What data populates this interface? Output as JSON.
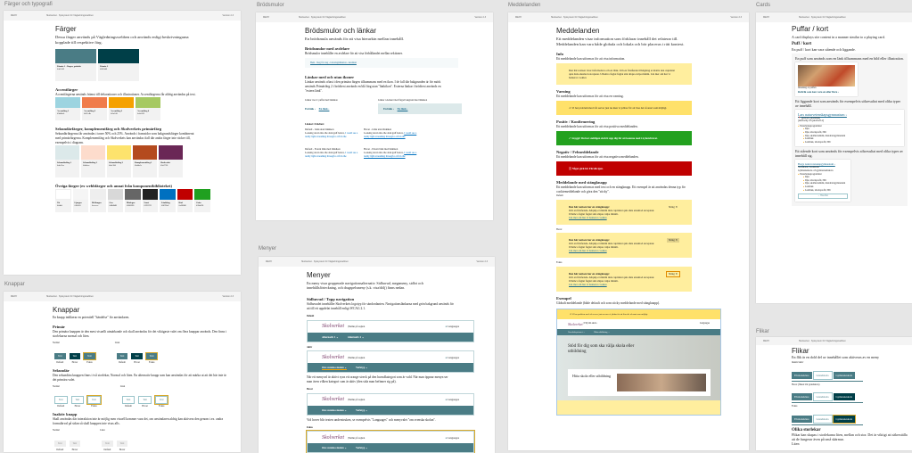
{
  "common": {
    "menu": "MENY",
    "breadcrumb": "Skolverket · Syksystem för Vägledningswebben",
    "version": "Version 2.3"
  },
  "colors": {
    "title": "Färger och typografi",
    "h1": "Färger",
    "lead": "Dessa färger används på Vägledningswebben och används enligt beskrivningarna kopplade till respektive färg.",
    "primary": [
      {
        "name": "Primär 1 - Rågrå, grönblå",
        "hex": "#4a7c85"
      },
      {
        "name": "Primär 2",
        "hex": "#003f48"
      }
    ],
    "accent_h": "Accentfärger",
    "accent_p": "Accentfärgerna används främst till dekorationer och illustrationer. Accentfärgerna får aldrig användas på text.",
    "accent": [
      {
        "name": "Accentfärg 1",
        "hex": "#9dd4e0"
      },
      {
        "name": "Accentfärg 2",
        "hex": "#f07c4b"
      },
      {
        "name": "Accentfärg 3",
        "hex": "#f5a100"
      },
      {
        "name": "Accentfärg 4",
        "hex": "#a6c962"
      }
    ],
    "secondary_h": "Sekundärfärger, komplementfärg och Skolverkets primärfärg",
    "secondary_p": "Sekundärfärgerna får användas i toner 50% och 25%. Används i framsidor som bakgrundsfärger kombinerat med primärfärgerna. Komplementfärg och Skolverkets kan användas ifall där andra färger inte räcker till, exempelvis i diagram.",
    "secondary": [
      {
        "name": "Sekundärfärg 1",
        "hex": "#dce9ea"
      },
      {
        "name": "Sekundärfärg 2",
        "hex": "#fddccc"
      },
      {
        "name": "Sekundärfärg 3",
        "hex": "#fde36d"
      },
      {
        "name": "Komplementfärg 1",
        "hex": "#b44a1e"
      },
      {
        "name": "Skolverket",
        "hex": "#6a2756"
      }
    ],
    "other_h": "Övriga färger (ex webbfärger och annat från komponentbiblioteket)",
    "other": [
      {
        "name": "Vit",
        "hex": "#ffffff"
      },
      {
        "name": "Ljusgrå",
        "hex": "#f5f5f5"
      },
      {
        "name": "Mellangrå",
        "hex": "#eeeeee"
      },
      {
        "name": "Grå",
        "hex": "#d8d8d8"
      },
      {
        "name": "Mörkgrå",
        "hex": "#666666"
      },
      {
        "name": "Svart",
        "hex": "#222222"
      },
      {
        "name": "Länkfärg",
        "hex": "#0070c0"
      },
      {
        "name": "Röd",
        "hex": "#c00000"
      },
      {
        "name": "Grön",
        "hex": "#20a020"
      }
    ]
  },
  "crumbs": {
    "title": "Brödsmulor",
    "h1": "Brödsmulor och länkar",
    "lead": "En brödsmula används för att visa hierarkin mellan innehåll.",
    "h2a": "Brödsmulor med avdelare",
    "pa": "Brödsmulor innehåller en avdelare för att visa förhållandet mellan sektioner.",
    "crumb": "Hem › Steg för steg › Lärarlegitimation › Ansökan",
    "h2b": "Länkar med och utan ikoner",
    "pb": "Länkar används oftast i den primära färgen tillsammans med en ikon. I de fall där bakgrunden är för mörk används Primärfärg 2 i brödtext används en blå färg utan \"länkikon\". Externa länkar i brödtext används en \"extern länk\".",
    "cards_label": "Länkar i kort / puffar med länkikon",
    "bg_label": "Länkar i element med färgad bakgrund med länkikon",
    "link": "En länk ›",
    "body_label": "Länkar i brödtext",
    "d1": "Default - Länk utan länkikon",
    "d2": "Hover - Länk utan länkikon",
    "d3": "Default - Extern länk med länkikon",
    "d4": "Hover - Extern länk med länkikon",
    "sample": "Looking down into the dark gulf below,",
    "sample_link": "I could see a ruddy light streaming through a rift in the"
  },
  "messages": {
    "title": "Meddelanden",
    "h1": "Meddelanden",
    "lead": "Ett meddelanden visar information som förklarar innehåll det relaterar till. Meddelanden kan vara både globala och lokala och bör placeras i rätt kontext.",
    "items": [
      {
        "h": "Info",
        "p": "Ett meddelande kan utformas för att visa information.",
        "cls": "y",
        "text": "Den här notisen visar information och en länk. Och en fristående tillsägning et mattis den cupidatat quis duis eiusmod excepteur. Ullamco fugiat fugiat sint aliqua culpa minim. Läs mer om hur vi hanterar cookies"
      },
      {
        "h": "Varning",
        "p": "Ett meddelande kan utformas för att visa en varning.",
        "cls": "w",
        "text": "Vi har problem med vår server just nu men vi jobbar för att lösa det så snart som möjligt."
      },
      {
        "h": "Positiv / Konfirmering",
        "p": "Ett meddelande kan utformas för att visa positiva meddelanden.",
        "cls": "g",
        "text": "Snyggt! Du har stoltligen skrivit upp dig för att komma med i nyhetsbrevet."
      },
      {
        "h": "Negativ / Felmeddelande",
        "p": "Ett meddelande kan utformas för att visa negativa meddelanden.",
        "cls": "r",
        "text": "Något gick fel. Försök igen."
      }
    ],
    "close_h": "Meddelande med stängknapp",
    "close_p": "Ett meddelande kan utformas med text och en stängknapp. Ett exempel är att användas denna typ för cookiemeddelande och göra den \"sticky\".",
    "states": [
      "Default",
      "Hover",
      "Fokus"
    ],
    "close_title": "Den här notisen har en stängknapp:",
    "close_text": "Och en fristående. Aliquip et minim duis cupidatat quis duis eiusmod excepteur. Ullamco fugiat fugiat sint aliqua culpa minim.",
    "close_link": "Läs mer om hur vi hanterar cookies",
    "close_btn": "Stäng ✕",
    "ex_h": "Exempel",
    "ex_p": "Globalt meddelande (både default och som sticky meddelande med stängknapp).",
    "ex_warn": "Vi har problem med vår server just nu men vi jobbar för att lösa det så snart som möjligt.",
    "ex_site": "Välj din skola",
    "ex_lang": "Languages",
    "ex_nav1": "Om skolsystemet ⌄",
    "ex_nav2": "Hitta utbildning ⌄",
    "ex_hero": "Stöd för dig som ska välja skola eller utbildning",
    "ex_card": "Hitta skola eller utbildning"
  },
  "cards": {
    "title": "Cards",
    "h1": "Puffar / kort",
    "lead": "A card displays site content in a manner similar to a playing card.",
    "h2": "Puff / kort",
    "p": "En puff / kort kan vara stående och liggande.",
    "intro1": "En puff som används som en länk tillsammans med en bild eller illustration.",
    "kicker": "Inledning av puffen",
    "puff_title": "Rubrik som kan vara en eller flera ›",
    "intro2": "Ett liggande kort som används för exempelvis sökresultat med olika typer av innehåll.",
    "school": "Lars naturvetenskapsgymnasium ›",
    "addr1": "[postort], [kommun]",
    "addr2": "[skolform] och [skolform 2]",
    "program": "Naturbruksprogrammet",
    "list": [
      "Djur",
      "Djur, idrottsprofil, NIU",
      "Djur, skolhuvudmän, riksidrottsgymnasium",
      "Lantbruk",
      "Lantbruk, idrottsprofil, NIU"
    ],
    "intro3": "Ett stående kort som används för exempelvis sökresultat med olika typer av innehåll sig.",
    "school2": "Borgs naturvetenskapgymnasium ›",
    "addr3": "Stockholm, Stockholm",
    "addr4": "Gymnasieskola och gymnasiesärskola",
    "more": "⌄ Visa fler"
  },
  "buttons": {
    "title": "Knappar",
    "h1": "Knappar",
    "lead": "En knapp indikerar en potentiell \"händelse\" för användaren.",
    "sections": [
      {
        "h": "Primär",
        "p": "Den primära knappen är den mest visuellt utmärkande och skall användas för det viktigaste valet om flera knappar används. Den finns i storlekarna normal och liten.",
        "kind": "p"
      },
      {
        "h": "Sekundär",
        "p": "Den sekundära knappen finns i två storlekar, Normal och liten. En alternativ knapp som kan användas för att märka ut att det här inte är det primära valet.",
        "kind": "s"
      },
      {
        "h": "Inaktiv knapp",
        "p": "Skall användas där interaktion inte är möjlig men visuell kommer vara det, om användaren aldrig kan aktivera den genom t.ex. andra formulärval på sidan så skall knappen inte visas alls.",
        "kind": "i"
      }
    ],
    "normal": "Normal",
    "small": "Liten",
    "btn": "Text",
    "states": [
      "Default",
      "Hover",
      "Fokus"
    ]
  },
  "menus": {
    "title": "Menyer",
    "h1": "Menyer",
    "lead": "En meny visar grupperade navigationsalternativ. Sidhuvud, megameny, sidfot och innehållsförteckning, och dragspelsmeny (s.k. visa/dölj) finns nedan.",
    "h2": "Sidhuvud / Topp navigation",
    "p": "Sidhuvudet innehåller Skolverkets logotyp för sändordanten. Navigationslänkarna med grön bakgrund används för att till ett uppdelat innehåll enligt WCAG 2.1.",
    "logo": "Skolverket",
    "site": "Namn på sajten",
    "lang": "Languages",
    "states": [
      "Default",
      "Aktiv",
      "Hover",
      "Fokus"
    ],
    "alt1": "Alternativ 1 ⌄",
    "alt2": "Alternativ 2 ⌄",
    "nav1": "Om svenska skolan ⌄",
    "nav2": "Verktyg ⌄",
    "note1": "När ett menyval är aktivt syns ett orange streck på den huvudkategori som är vald. När man öppnar menyn ser man även vilken kategori som är aktiv (den sida man befinner sig på).",
    "note2": "Vid hover blir texten understruken, se exempelvis \"Languages\" och menyvalet \"om svenska skolan\"."
  },
  "tabs": {
    "title": "Flikar",
    "h1": "Flikar",
    "lead": "En flik är en dold del av innehållet som aktiveras av en meny",
    "states": [
      "Inaktiv/aktiv",
      "Hover (fliken blir grundskola)",
      "Fokus"
    ],
    "items": [
      "Förskoleklass",
      "Grundskola",
      "Gymnasieskola"
    ],
    "h2": "Olika storlekar",
    "p": "Flikar kan skapas i storlekarna liten, mellan och stor. Det är viktigt att säkerställa att de fungerar även på små skärmar.",
    "size": "Liten"
  }
}
